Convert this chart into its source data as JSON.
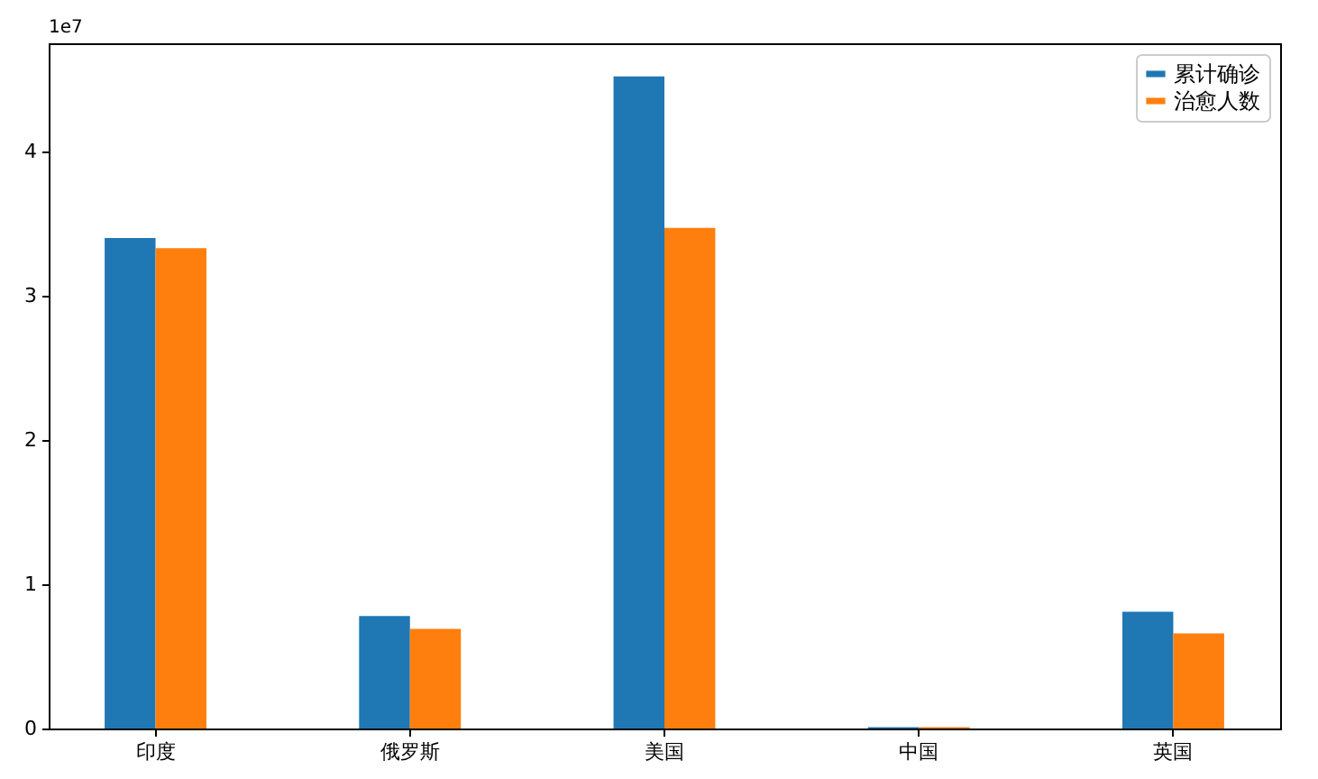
{
  "chart_data": {
    "type": "bar",
    "categories": [
      "印度",
      "俄罗斯",
      "美国",
      "中国",
      "英国"
    ],
    "series": [
      {
        "name": "累计确诊",
        "color": "#1f77b4",
        "values": [
          3.4,
          0.78,
          4.52,
          0.01,
          0.81
        ]
      },
      {
        "name": "治愈人数",
        "color": "#ff7f0e",
        "values": [
          3.33,
          0.69,
          3.47,
          0.01,
          0.66
        ]
      }
    ],
    "ylim": [
      0,
      4.75
    ],
    "yticks": [
      0,
      1,
      2,
      3,
      4
    ],
    "annotations": [
      "1e7"
    ],
    "legend": "top right",
    "grid": false
  }
}
